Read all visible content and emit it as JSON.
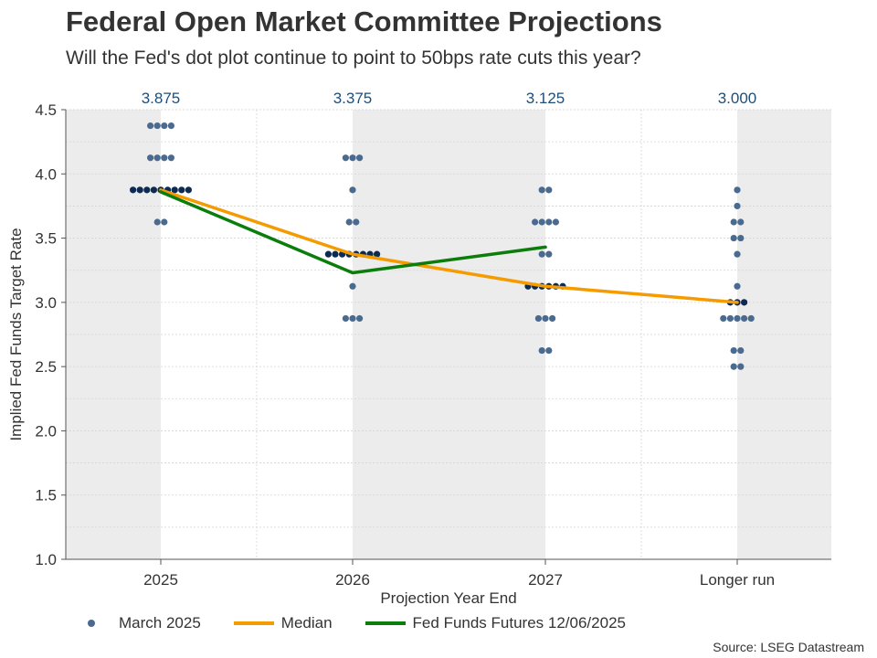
{
  "header": {
    "title": "Federal Open Market Committee Projections",
    "subtitle": "Will the Fed's dot plot continue to point to 50bps rate cuts this year?"
  },
  "source": "Source: LSEG Datastream",
  "legend": {
    "dots": "March 2025",
    "median": "Median",
    "futures": "Fed Funds Futures 12/06/2025"
  },
  "colors": {
    "dot": "#4a6a8f",
    "dot_median": "#0d2b52",
    "median_line": "#f59b00",
    "futures_line": "#0a7d0a",
    "band": "#ececec",
    "median_label": "#1f4e79"
  },
  "chart_data": {
    "type": "scatter",
    "title": "Federal Open Market Committee Projections",
    "subtitle": "Will the Fed's dot plot continue to point to 50bps rate cuts this year?",
    "xlabel": "Projection Year End",
    "ylabel": "Implied Fed Funds Target Rate",
    "ylim": [
      1.0,
      4.5
    ],
    "yticks": [
      "1.0",
      "1.5",
      "2.0",
      "2.5",
      "3.0",
      "3.5",
      "4.0",
      "4.5"
    ],
    "categories": [
      "2025",
      "2026",
      "2027",
      "Longer run"
    ],
    "median_labels": [
      "3.875",
      "3.375",
      "3.125",
      "3.000"
    ],
    "dots": [
      {
        "category": "2025",
        "levels": [
          [
            4.375,
            4
          ],
          [
            4.125,
            4
          ],
          [
            3.875,
            9
          ],
          [
            3.625,
            2
          ]
        ]
      },
      {
        "category": "2026",
        "levels": [
          [
            4.125,
            3
          ],
          [
            3.875,
            1
          ],
          [
            3.625,
            2
          ],
          [
            3.375,
            8
          ],
          [
            3.125,
            1
          ],
          [
            2.875,
            3
          ]
        ]
      },
      {
        "category": "2027",
        "levels": [
          [
            3.875,
            2
          ],
          [
            3.625,
            4
          ],
          [
            3.375,
            2
          ],
          [
            3.125,
            6
          ],
          [
            2.875,
            3
          ],
          [
            2.625,
            2
          ]
        ]
      },
      {
        "category": "Longer run",
        "levels": [
          [
            3.875,
            1
          ],
          [
            3.75,
            1
          ],
          [
            3.625,
            2
          ],
          [
            3.5,
            2
          ],
          [
            3.375,
            1
          ],
          [
            3.125,
            1
          ],
          [
            3.0,
            3
          ],
          [
            2.875,
            5
          ],
          [
            2.625,
            2
          ],
          [
            2.5,
            2
          ]
        ]
      }
    ],
    "series": [
      {
        "name": "Median",
        "values": [
          3.875,
          3.375,
          3.125,
          3.0
        ]
      },
      {
        "name": "Fed Funds Futures 12/06/2025",
        "values": [
          3.86,
          3.23,
          3.43,
          null
        ]
      }
    ],
    "legend_position": "bottom"
  }
}
